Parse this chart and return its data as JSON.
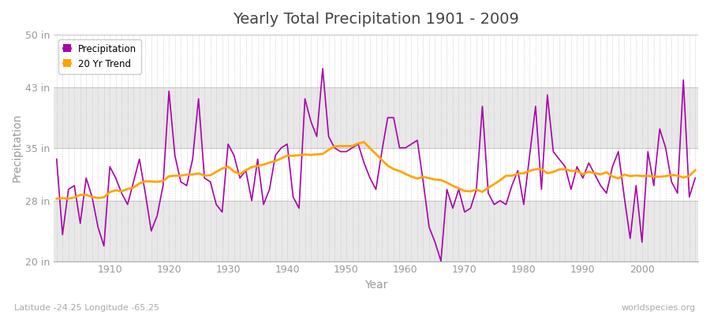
{
  "title": "Yearly Total Precipitation 1901 - 2009",
  "xlabel": "Year",
  "ylabel": "Precipitation",
  "years": [
    1901,
    1902,
    1903,
    1904,
    1905,
    1906,
    1907,
    1908,
    1909,
    1910,
    1911,
    1912,
    1913,
    1914,
    1915,
    1916,
    1917,
    1918,
    1919,
    1920,
    1921,
    1922,
    1923,
    1924,
    1925,
    1926,
    1927,
    1928,
    1929,
    1930,
    1931,
    1932,
    1933,
    1934,
    1935,
    1936,
    1937,
    1938,
    1939,
    1940,
    1941,
    1942,
    1943,
    1944,
    1945,
    1946,
    1947,
    1948,
    1949,
    1950,
    1951,
    1952,
    1953,
    1954,
    1955,
    1956,
    1957,
    1958,
    1959,
    1960,
    1961,
    1962,
    1963,
    1964,
    1965,
    1966,
    1967,
    1968,
    1969,
    1970,
    1971,
    1972,
    1973,
    1974,
    1975,
    1976,
    1977,
    1978,
    1979,
    1980,
    1981,
    1982,
    1983,
    1984,
    1985,
    1986,
    1987,
    1988,
    1989,
    1990,
    1991,
    1992,
    1993,
    1994,
    1995,
    1996,
    1997,
    1998,
    1999,
    2000,
    2001,
    2002,
    2003,
    2004,
    2005,
    2006,
    2007,
    2008,
    2009
  ],
  "precip": [
    33.5,
    23.5,
    29.5,
    30.0,
    25.0,
    31.0,
    28.5,
    24.5,
    22.0,
    32.5,
    31.0,
    29.0,
    27.5,
    30.5,
    33.5,
    29.0,
    24.0,
    26.0,
    30.0,
    42.5,
    34.0,
    30.5,
    30.0,
    33.5,
    41.5,
    31.0,
    30.5,
    27.5,
    26.5,
    35.5,
    34.0,
    31.0,
    32.0,
    28.0,
    33.5,
    27.5,
    29.5,
    34.0,
    35.0,
    35.5,
    28.5,
    27.0,
    41.5,
    38.5,
    36.5,
    45.5,
    36.5,
    35.0,
    34.5,
    34.5,
    35.0,
    35.5,
    33.0,
    31.0,
    29.5,
    34.5,
    39.0,
    39.0,
    35.0,
    35.0,
    35.5,
    36.0,
    30.5,
    24.5,
    22.5,
    20.0,
    29.5,
    27.0,
    29.5,
    26.5,
    27.0,
    29.5,
    40.5,
    29.0,
    27.5,
    28.0,
    27.5,
    30.0,
    32.0,
    27.5,
    34.0,
    40.5,
    29.5,
    42.0,
    34.5,
    33.5,
    32.5,
    29.5,
    32.5,
    31.0,
    33.0,
    31.5,
    30.0,
    29.0,
    32.5,
    34.5,
    28.5,
    23.0,
    30.0,
    22.5,
    34.5,
    30.0,
    37.5,
    35.0,
    30.5,
    29.0,
    44.0,
    28.5,
    31.0
  ],
  "trend_color": "#FFA500",
  "precip_color": "#AA00AA",
  "bg_color": "#FFFFFF",
  "plot_bg_light": "#FFFFFF",
  "plot_bg_dark": "#E8E8E8",
  "ylim": [
    20,
    50
  ],
  "yticks": [
    20,
    28,
    35,
    43,
    50
  ],
  "ytick_labels": [
    "20 in",
    "28 in",
    "35 in",
    "43 in",
    "50 in"
  ],
  "xticks": [
    1910,
    1920,
    1930,
    1940,
    1950,
    1960,
    1970,
    1980,
    1990,
    2000
  ],
  "grid_color": "#BBBBBB",
  "trend_window": 20,
  "watermark": "worldspecies.org",
  "bottom_left": "Latitude -24.25 Longitude -65.25"
}
